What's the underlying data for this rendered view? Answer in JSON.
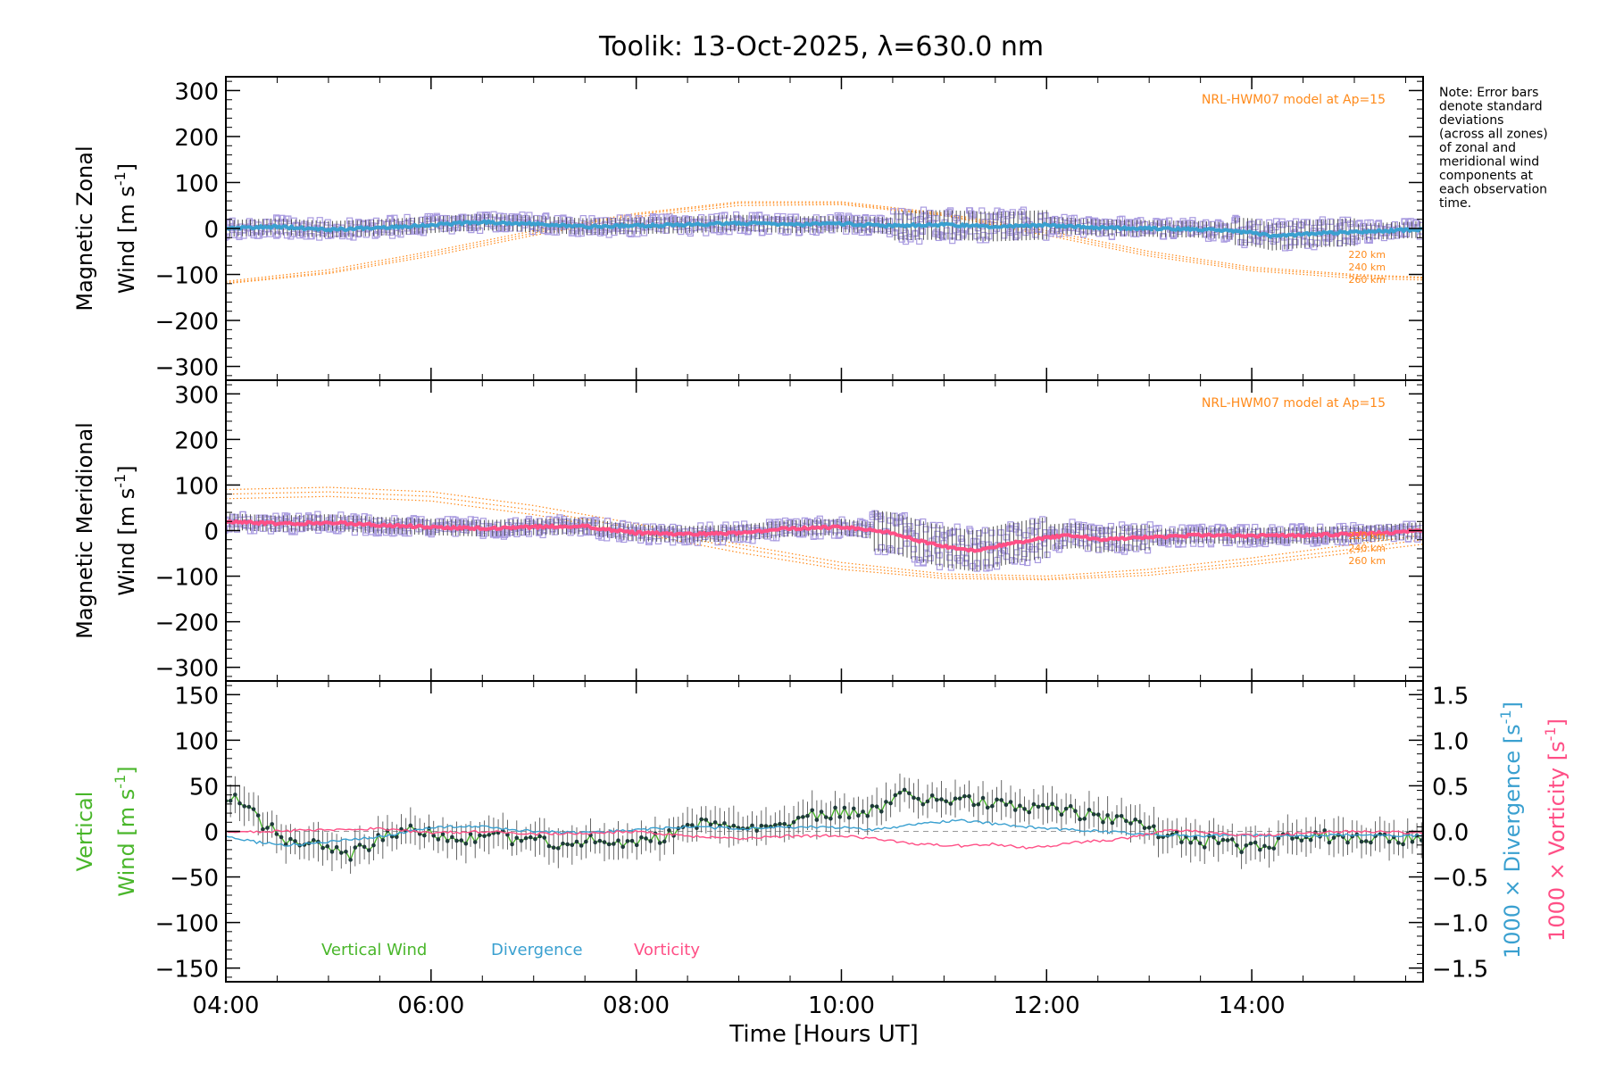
{
  "title": "Toolik: 13-Oct-2025, λ=630.0 nm",
  "note": [
    "Note: Error bars",
    "denote standard",
    "deviations",
    "(across all zones)",
    "of zonal and",
    "meridional wind",
    "components at",
    "each observation",
    "time."
  ],
  "colors": {
    "model": "#ff8a1a",
    "zonal": "#3aa0d0",
    "meridional": "#ff4f86",
    "vertical": "#49b62a",
    "divergence": "#3aa0d0",
    "vorticity": "#ff4f86",
    "scatter": "#a99be0",
    "errorbar": "#444444"
  },
  "chart_data": [
    {
      "id": "zonal",
      "type": "line",
      "ylabel_line1": "Magnetic Zonal",
      "ylabel_line2": "Wind [m s",
      "ylabel_sup": "-1",
      "ylabel_close": "]",
      "xlim": [
        4.0,
        15.67
      ],
      "ylim": [
        -330,
        330
      ],
      "yticks": [
        300,
        200,
        100,
        0,
        -100,
        -200,
        -300
      ],
      "ytick_labels": [
        "300",
        "200",
        "100",
        "0",
        "−100",
        "−200",
        "−300"
      ],
      "model_label": "NRL-HWM07 model at Ap=15",
      "model_heights": [
        "220 km",
        "240 km",
        "260 km"
      ],
      "series": [
        {
          "name": "Zonal wind",
          "x": [
            4.0,
            4.5,
            5.0,
            5.5,
            6.0,
            6.5,
            7.0,
            7.5,
            8.0,
            8.5,
            9.0,
            9.5,
            10.0,
            10.5,
            11.0,
            11.5,
            12.0,
            12.5,
            13.0,
            13.5,
            14.0,
            14.2,
            14.5,
            15.0,
            15.67
          ],
          "y": [
            0,
            4,
            -2,
            2,
            8,
            14,
            10,
            4,
            6,
            8,
            12,
            8,
            10,
            6,
            8,
            4,
            8,
            2,
            0,
            -2,
            -8,
            -18,
            -12,
            -8,
            -2
          ]
        },
        {
          "name": "HWM 220 km",
          "x": [
            4.0,
            5.0,
            6.0,
            7.0,
            8.0,
            9.0,
            10.0,
            11.0,
            12.0,
            13.0,
            14.0,
            15.0,
            15.67
          ],
          "y": [
            -118,
            -95,
            -55,
            -10,
            30,
            55,
            55,
            30,
            -10,
            -55,
            -88,
            -103,
            -108
          ]
        },
        {
          "name": "HWM 240 km",
          "x": [
            4.0,
            5.0,
            6.0,
            7.0,
            8.0,
            9.0,
            10.0,
            11.0,
            12.0,
            13.0,
            14.0,
            15.0,
            15.67
          ],
          "y": [
            -115,
            -90,
            -50,
            -5,
            33,
            58,
            58,
            33,
            -5,
            -50,
            -84,
            -100,
            -106
          ]
        },
        {
          "name": "HWM 260 km",
          "x": [
            4.0,
            5.0,
            6.0,
            7.0,
            8.0,
            9.0,
            10.0,
            11.0,
            12.0,
            13.0,
            14.0,
            15.0,
            15.67
          ],
          "y": [
            -120,
            -98,
            -60,
            -15,
            25,
            50,
            52,
            28,
            -15,
            -60,
            -92,
            -108,
            -112
          ]
        }
      ]
    },
    {
      "id": "meridional",
      "type": "line",
      "ylabel_line1": "Magnetic Meridional",
      "ylabel_line2": "Wind [m s",
      "ylabel_sup": "-1",
      "ylabel_close": "]",
      "xlim": [
        4.0,
        15.67
      ],
      "ylim": [
        -330,
        330
      ],
      "yticks": [
        300,
        200,
        100,
        0,
        -100,
        -200,
        -300
      ],
      "ytick_labels": [
        "300",
        "200",
        "100",
        "0",
        "−100",
        "−200",
        "−300"
      ],
      "model_label": "NRL-HWM07 model at Ap=15",
      "model_heights": [
        "220 km",
        "240 km",
        "260 km"
      ],
      "series": [
        {
          "name": "Meridional wind",
          "x": [
            4.0,
            4.5,
            5.0,
            5.5,
            6.0,
            6.5,
            7.0,
            7.5,
            7.8,
            8.0,
            8.5,
            9.0,
            9.5,
            10.0,
            10.5,
            10.8,
            11.0,
            11.3,
            11.6,
            12.0,
            12.3,
            12.5,
            13.0,
            13.5,
            14.0,
            14.5,
            15.0,
            15.67
          ],
          "y": [
            20,
            15,
            18,
            12,
            8,
            5,
            8,
            10,
            0,
            -5,
            -8,
            -5,
            5,
            8,
            -5,
            -25,
            -35,
            -45,
            -30,
            -15,
            -10,
            -20,
            -15,
            -10,
            -12,
            -10,
            -8,
            0
          ]
        },
        {
          "name": "HWM 220 km",
          "x": [
            4.0,
            5.0,
            6.0,
            7.0,
            8.0,
            9.0,
            10.0,
            11.0,
            12.0,
            13.0,
            14.0,
            15.0,
            15.67
          ],
          "y": [
            90,
            95,
            85,
            55,
            15,
            -30,
            -70,
            -95,
            -100,
            -85,
            -60,
            -30,
            -10
          ]
        },
        {
          "name": "HWM 240 km",
          "x": [
            4.0,
            5.0,
            6.0,
            7.0,
            8.0,
            9.0,
            10.0,
            11.0,
            12.0,
            13.0,
            14.0,
            15.0,
            15.67
          ],
          "y": [
            80,
            85,
            75,
            45,
            5,
            -38,
            -78,
            -100,
            -105,
            -92,
            -68,
            -40,
            -20
          ]
        },
        {
          "name": "HWM 260 km",
          "x": [
            4.0,
            5.0,
            6.0,
            7.0,
            8.0,
            9.0,
            10.0,
            11.0,
            12.0,
            13.0,
            14.0,
            15.0,
            15.67
          ],
          "y": [
            70,
            75,
            65,
            35,
            -5,
            -48,
            -85,
            -105,
            -108,
            -98,
            -75,
            -48,
            -30
          ]
        }
      ]
    },
    {
      "id": "vertical",
      "type": "line",
      "ylabel_line1": "Vertical",
      "ylabel_line2": "Wind [m s",
      "ylabel_sup": "-1",
      "ylabel_close": "]",
      "right_label1": "1000 × Divergence [s",
      "right_label2": "1000 × Vorticity [s",
      "right_sup": "-1",
      "right_close": "]",
      "xlim": [
        4.0,
        15.67
      ],
      "ylim": [
        -165,
        165
      ],
      "yticks": [
        150,
        100,
        50,
        0,
        -50,
        -100,
        -150
      ],
      "ytick_labels": [
        "150",
        "100",
        "50",
        "0",
        "−50",
        "−100",
        "−150"
      ],
      "y2lim": [
        -1.65,
        1.65
      ],
      "y2ticks": [
        1.5,
        1.0,
        0.5,
        0.0,
        -0.5,
        -1.0,
        -1.5
      ],
      "y2tick_labels": [
        "1.5",
        "1.0",
        "0.5",
        "0.0",
        "−0.5",
        "−1.0",
        "−1.5"
      ],
      "xticks": [
        4,
        6,
        8,
        10,
        12,
        14
      ],
      "xtick_labels": [
        "04:00",
        "06:00",
        "08:00",
        "10:00",
        "12:00",
        "14:00"
      ],
      "xlabel": "Time [Hours UT]",
      "legend": [
        "Vertical Wind",
        "Divergence",
        "Vorticity"
      ],
      "series": [
        {
          "name": "Vertical Wind",
          "axis": "left",
          "x": [
            4.0,
            4.2,
            4.4,
            4.6,
            4.8,
            5.0,
            5.2,
            5.4,
            5.6,
            5.8,
            6.0,
            6.3,
            6.6,
            7.0,
            7.3,
            7.6,
            8.0,
            8.3,
            8.6,
            9.0,
            9.3,
            9.6,
            9.9,
            10.2,
            10.4,
            10.6,
            10.8,
            11.0,
            11.3,
            11.6,
            12.0,
            12.3,
            12.6,
            12.9,
            13.2,
            13.5,
            13.8,
            14.0,
            14.3,
            14.6,
            15.0,
            15.3,
            15.67
          ],
          "y": [
            40,
            25,
            5,
            -10,
            -15,
            -20,
            -25,
            -15,
            -5,
            5,
            0,
            -8,
            -5,
            -10,
            -15,
            -10,
            -10,
            -5,
            10,
            5,
            8,
            15,
            20,
            22,
            25,
            40,
            35,
            30,
            35,
            30,
            25,
            20,
            15,
            10,
            -5,
            -10,
            -15,
            -20,
            -10,
            -5,
            -8,
            -5,
            -10
          ]
        },
        {
          "name": "Divergence",
          "axis": "right",
          "x": [
            4.0,
            4.3,
            4.6,
            5.0,
            5.3,
            5.6,
            6.0,
            6.5,
            7.0,
            7.5,
            8.0,
            8.5,
            9.0,
            9.5,
            10.0,
            10.3,
            10.6,
            10.9,
            11.2,
            11.5,
            11.8,
            12.0,
            12.5,
            13.0,
            13.5,
            14.0,
            14.5,
            15.0,
            15.67
          ],
          "y": [
            -0.05,
            -0.12,
            -0.15,
            -0.12,
            -0.08,
            -0.05,
            0.05,
            0.05,
            0.0,
            -0.02,
            0.02,
            0.05,
            0.03,
            0.05,
            0.04,
            0.02,
            0.06,
            0.1,
            0.12,
            0.08,
            0.05,
            0.03,
            0.0,
            -0.03,
            -0.05,
            -0.04,
            -0.05,
            -0.04,
            -0.05
          ]
        },
        {
          "name": "Vorticity",
          "axis": "right",
          "x": [
            4.0,
            4.5,
            5.0,
            5.5,
            6.0,
            6.5,
            7.0,
            7.5,
            8.0,
            8.5,
            9.0,
            9.5,
            10.0,
            10.3,
            10.6,
            10.9,
            11.2,
            11.5,
            11.8,
            12.0,
            12.3,
            12.6,
            12.9,
            13.2,
            13.5,
            14.0,
            14.5,
            15.0,
            15.67
          ],
          "y": [
            0.0,
            0.0,
            0.02,
            0.03,
            -0.02,
            0.0,
            -0.03,
            -0.02,
            0.0,
            -0.05,
            -0.08,
            -0.05,
            -0.05,
            -0.08,
            -0.12,
            -0.15,
            -0.16,
            -0.14,
            -0.18,
            -0.16,
            -0.12,
            -0.1,
            -0.05,
            0.02,
            0.0,
            -0.05,
            -0.02,
            0.0,
            -0.02
          ]
        }
      ]
    }
  ]
}
